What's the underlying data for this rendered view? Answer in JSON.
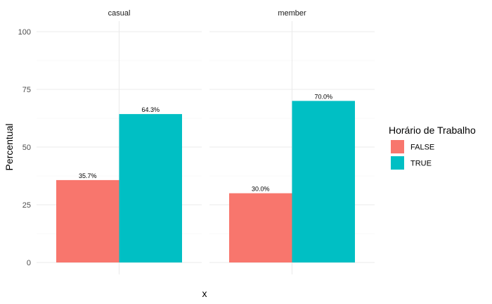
{
  "chart_data": {
    "type": "bar",
    "facets": [
      "casual",
      "member"
    ],
    "categories": [
      "casual",
      "member"
    ],
    "series": [
      {
        "name": "FALSE",
        "color": "#F8766D",
        "values": [
          35.7,
          30.0
        ]
      },
      {
        "name": "TRUE",
        "color": "#00BFC4",
        "values": [
          64.3,
          70.0
        ]
      }
    ],
    "data_labels": [
      [
        "35.7%",
        "30.0%"
      ],
      [
        "64.3%",
        "70.0%"
      ]
    ],
    "xlabel": "x",
    "ylabel": "Percentual",
    "ylim": [
      0,
      100
    ],
    "yticks": [
      0,
      25,
      50,
      75,
      100
    ],
    "grid": true,
    "legend": {
      "title": "Horário de Trabalho",
      "placement": "right"
    }
  }
}
